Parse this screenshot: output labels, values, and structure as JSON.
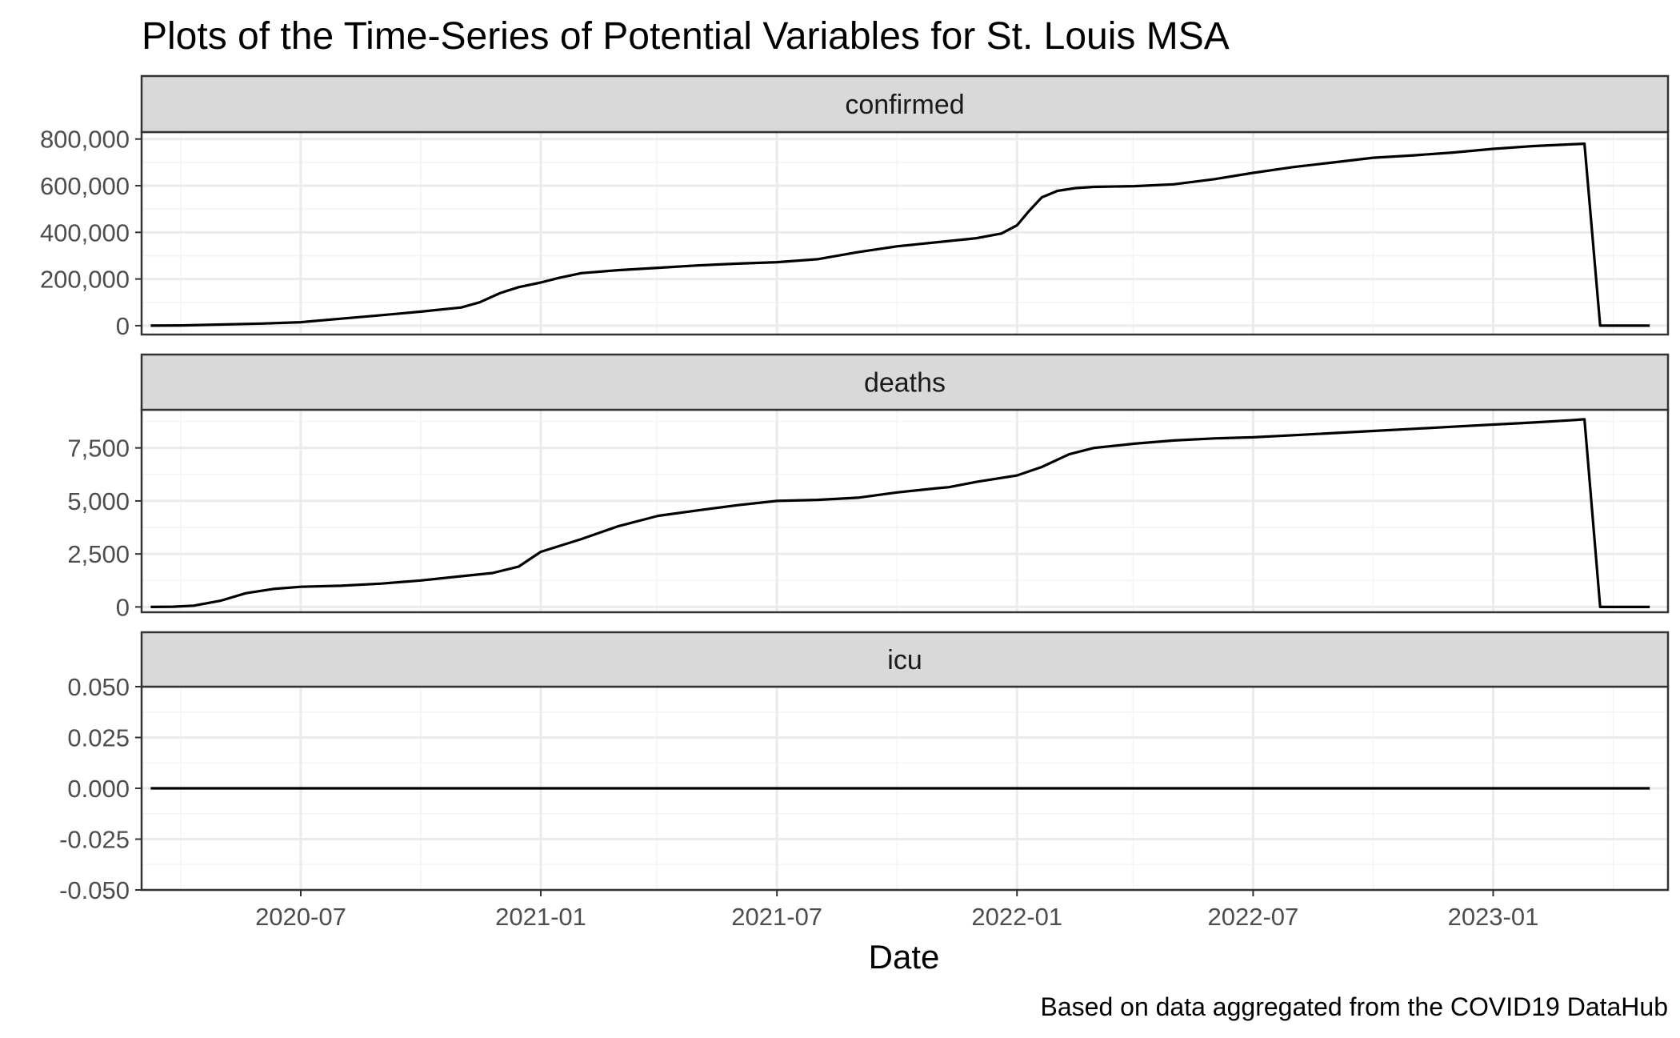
{
  "chart_data": {
    "type": "line",
    "title": "Plots of the Time-Series of Potential Variables for St. Louis MSA",
    "xlabel": "Date",
    "ylabel": "",
    "caption": "Based on data aggregated from the COVID19 DataHub",
    "x_range": [
      "2020-03-01",
      "2023-05-15"
    ],
    "x_ticks": [
      {
        "date": "2020-07-01",
        "label": "2020-07"
      },
      {
        "date": "2021-01-01",
        "label": "2021-01"
      },
      {
        "date": "2021-07-01",
        "label": "2021-07"
      },
      {
        "date": "2022-01-01",
        "label": "2022-01"
      },
      {
        "date": "2022-07-01",
        "label": "2022-07"
      },
      {
        "date": "2023-01-01",
        "label": "2023-01"
      }
    ],
    "grid": true,
    "legend": "none",
    "colors": {
      "line": "#000000",
      "strip_fill": "#d9d9d9",
      "grid_major": "#ebebeb",
      "grid_minor": "#f4f4f4",
      "border": "#333333"
    },
    "panels": [
      {
        "name": "confirmed",
        "ylim": [
          -38000,
          830000
        ],
        "y_ticks": [
          {
            "value": 0,
            "label": "0"
          },
          {
            "value": 200000,
            "label": "200,000"
          },
          {
            "value": 400000,
            "label": "400,000"
          },
          {
            "value": 600000,
            "label": "600,000"
          },
          {
            "value": 800000,
            "label": "800,000"
          }
        ],
        "series": [
          {
            "x": [
              "2020-03-08",
              "2020-04-01",
              "2020-05-01",
              "2020-06-01",
              "2020-07-01",
              "2020-08-01",
              "2020-09-01",
              "2020-10-01",
              "2020-11-01",
              "2020-11-15",
              "2020-12-01",
              "2020-12-15",
              "2021-01-01",
              "2021-01-15",
              "2021-02-01",
              "2021-03-01",
              "2021-04-01",
              "2021-05-01",
              "2021-06-01",
              "2021-07-01",
              "2021-08-01",
              "2021-09-01",
              "2021-10-01",
              "2021-11-01",
              "2021-12-01",
              "2021-12-20",
              "2022-01-01",
              "2022-01-10",
              "2022-01-20",
              "2022-02-01",
              "2022-02-15",
              "2022-03-01",
              "2022-04-01",
              "2022-05-01",
              "2022-06-01",
              "2022-07-01",
              "2022-08-01",
              "2022-09-01",
              "2022-10-01",
              "2022-11-01",
              "2022-12-01",
              "2023-01-01",
              "2023-02-01",
              "2023-03-01",
              "2023-03-12",
              "2023-03-24",
              "2023-04-01",
              "2023-05-01"
            ],
            "y": [
              0,
              1000,
              5000,
              9000,
              15000,
              30000,
              45000,
              60000,
              78000,
              100000,
              140000,
              165000,
              185000,
              205000,
              225000,
              238000,
              248000,
              258000,
              266000,
              272000,
              285000,
              315000,
              340000,
              358000,
              375000,
              395000,
              430000,
              490000,
              550000,
              578000,
              590000,
              595000,
              598000,
              606000,
              628000,
              655000,
              680000,
              700000,
              720000,
              730000,
              742000,
              758000,
              770000,
              777000,
              780000,
              0,
              0,
              0
            ]
          }
        ]
      },
      {
        "name": "deaths",
        "ylim": [
          -250,
          9300
        ],
        "y_ticks": [
          {
            "value": 0,
            "label": "0"
          },
          {
            "value": 2500,
            "label": "2,500"
          },
          {
            "value": 5000,
            "label": "5,000"
          },
          {
            "value": 7500,
            "label": "7,500"
          }
        ],
        "series": [
          {
            "x": [
              "2020-03-08",
              "2020-03-25",
              "2020-04-10",
              "2020-05-01",
              "2020-05-20",
              "2020-06-10",
              "2020-07-01",
              "2020-08-01",
              "2020-09-01",
              "2020-10-01",
              "2020-11-01",
              "2020-11-25",
              "2020-12-15",
              "2021-01-01",
              "2021-02-01",
              "2021-03-01",
              "2021-04-01",
              "2021-05-01",
              "2021-06-01",
              "2021-07-01",
              "2021-08-01",
              "2021-09-01",
              "2021-10-01",
              "2021-11-01",
              "2021-11-10",
              "2021-12-01",
              "2022-01-01",
              "2022-01-20",
              "2022-02-10",
              "2022-03-01",
              "2022-04-01",
              "2022-05-01",
              "2022-06-01",
              "2022-07-01",
              "2022-08-01",
              "2022-09-01",
              "2022-10-01",
              "2022-11-01",
              "2022-12-01",
              "2023-01-01",
              "2023-02-01",
              "2023-03-01",
              "2023-03-12",
              "2023-03-24",
              "2023-04-01",
              "2023-05-01"
            ],
            "y": [
              0,
              10,
              60,
              300,
              650,
              850,
              950,
              1000,
              1100,
              1250,
              1450,
              1600,
              1900,
              2600,
              3200,
              3800,
              4300,
              4550,
              4800,
              5000,
              5050,
              5150,
              5400,
              5600,
              5650,
              5900,
              6200,
              6600,
              7200,
              7500,
              7700,
              7850,
              7950,
              8000,
              8100,
              8200,
              8300,
              8400,
              8500,
              8600,
              8700,
              8800,
              8850,
              0,
              0,
              0
            ]
          }
        ]
      },
      {
        "name": "icu",
        "ylim": [
          -0.05,
          0.05
        ],
        "y_ticks": [
          {
            "value": -0.05,
            "label": "-0.050"
          },
          {
            "value": -0.025,
            "label": "-0.025"
          },
          {
            "value": 0,
            "label": "0.000"
          },
          {
            "value": 0.025,
            "label": "0.025"
          },
          {
            "value": 0.05,
            "label": "0.050"
          }
        ],
        "series": [
          {
            "x": [
              "2020-03-08",
              "2023-05-01"
            ],
            "y": [
              0,
              0
            ]
          }
        ]
      }
    ]
  }
}
